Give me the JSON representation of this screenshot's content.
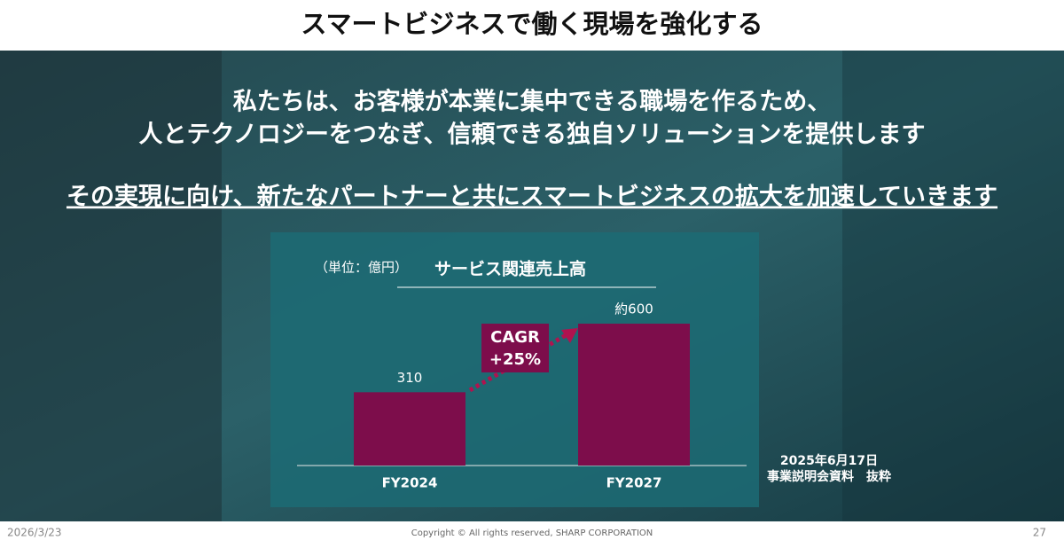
{
  "header": {
    "title": "スマートビジネスで働く現場を強化する"
  },
  "message": {
    "lines": [
      "私たちは、お客様が本業に集中できる職場を作るため、",
      "人とテクノロジーをつなぎ、信頼できる独自ソリューションを提供します"
    ],
    "emphasis": "その実現に向け、新たなパートナーと共にスマートビジネスの拡大を加速していきます"
  },
  "chart_data": {
    "type": "bar",
    "unit": "（単位：億円）",
    "title": "サービス関連売上高",
    "categories": [
      "FY2024",
      "FY2027"
    ],
    "values": [
      310,
      600
    ],
    "value_labels": [
      "310",
      "約600"
    ],
    "color": "#7d0d4b",
    "annotation": [
      "CAGR",
      "+25%"
    ]
  },
  "source": [
    "2025年6月17日",
    "事業説明会資料　抜粋"
  ],
  "footer": {
    "date": "2026/3/23",
    "copyright": "Copyright © All rights reserved, SHARP CORPORATION",
    "page": "27"
  }
}
